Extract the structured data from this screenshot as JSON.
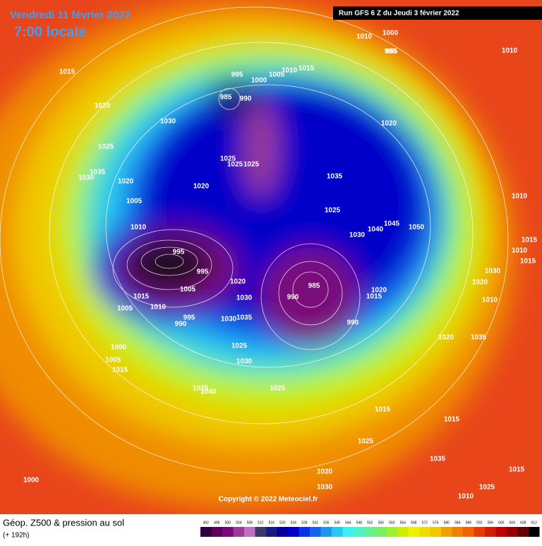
{
  "header": {
    "date": "Vendredi 11 février 2022",
    "time": "7:00 locale",
    "run": "Run GFS 6 Z du Jeudi 3 février 2022"
  },
  "copyright": "Copyright © 2022 Meteociel.fr",
  "legend": {
    "title": "Géop. Z500 & pression au sol",
    "lead": "(+ 192h)",
    "ticks": [
      492,
      496,
      500,
      504,
      508,
      512,
      516,
      520,
      524,
      528,
      532,
      536,
      540,
      544,
      548,
      552,
      556,
      560,
      564,
      568,
      572,
      576,
      580,
      584,
      588,
      592,
      596,
      600,
      604,
      608,
      612
    ]
  },
  "isobar_labels": [
    1015,
    1020,
    1030,
    1025,
    1035,
    1030,
    1020,
    1005,
    1010,
    995,
    995,
    1005,
    1015,
    1010,
    1005,
    995,
    990,
    1000,
    1005,
    1015,
    1025,
    1040,
    1020,
    1025,
    1025,
    1025,
    995,
    985,
    990,
    1000,
    1005,
    1010,
    1015,
    1010,
    1000,
    995,
    990,
    1020,
    1035,
    1025,
    1030,
    1040,
    1045,
    1050,
    985,
    990,
    990,
    1020,
    1015,
    1020,
    1030,
    1035,
    1030,
    1025,
    1030,
    1025,
    1015,
    1015,
    1010,
    1010,
    1010,
    1020,
    1030,
    1015,
    1015,
    1010,
    1035,
    1020,
    1025,
    1020,
    1030,
    1035,
    1025,
    1015,
    1010,
    1000
  ]
}
